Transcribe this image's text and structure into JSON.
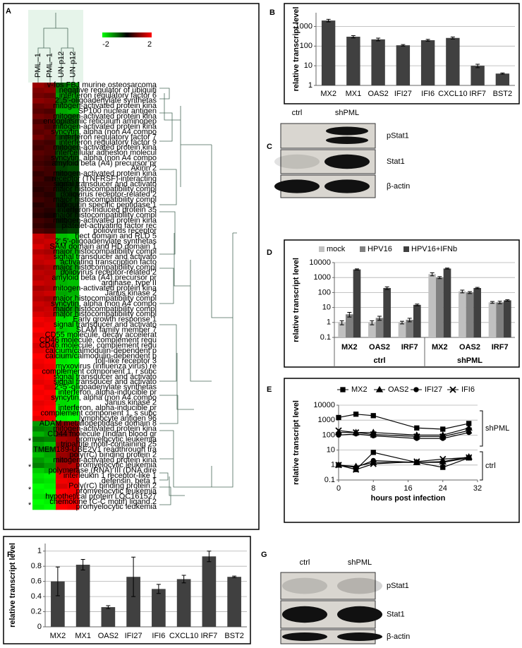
{
  "chart_data": [
    {
      "type": "heatmap",
      "panel": "A",
      "categories": [
        "v-fos FBJ murine osteosarcoma",
        "negative regulator of ubiquiti",
        "interferon regulatory factor 6",
        "2',5'-oligoadenylate synthetas",
        "mitogen-activated protein kina",
        "SP100 nuclear antigen",
        "mitogen-activated protein kina",
        "endoplasmic reticulum aminopep",
        "mitogen-activated protein kina",
        "syncytin, alpha (non A4 compo",
        "interferon regulatory factor 7",
        "interferon regulatory factor 9",
        "mitogen-activated protein kina",
        "intercellular adhesion molecul",
        "syncytin, alpha (non A4 compo",
        "amyloid beta (A4) precursor pr",
        "Akirin 2",
        "mitogen-activated protein kina",
        "receptor (TNFRSF)-interacting",
        "signal transducer and activato",
        "major histocompatibility compl",
        "poliovirus receptor-related 2",
        "major histocompatibility compl",
        "ubiquitin specific peptidase 1",
        "interferon-induced protein 35",
        "major histocompatibility compl",
        "mitogen-activated protein kina",
        "platelet-activating factor rec",
        "poliovirus receptor",
        "hect domain and RLD 5",
        "2',5'-oligoadenylate synthetas",
        "SAM domain and HD domain 1",
        "major histocompatibility compl",
        "signal transducer and activato",
        "activating transcription facto",
        "major histocompatibility compl",
        "poliovirus receptor-related 2",
        "amyloid beta (A4) precursor pr",
        "arginase, type II",
        "mitogen-activated protein kina",
        "Janus kinase 2",
        "major histocompatibility compl",
        "syncytin, alpha (non A4 compo",
        "major histocompatibility compl",
        "major histocompatibility compl",
        "Early growth response 1",
        "signal transducer and activato",
        "SLAM family member 7",
        "CD55 molecule, decay accelerat",
        "CD46 molecule, complement regu",
        "CD46 molecule, complement regu",
        "calcium/calmodulin-dependent p",
        "calcium/calmodulin-dependent p",
        "toll-like receptor 3",
        "myxovirus (influenza virus) re",
        "complement component 1, r subc",
        "signal transducer and activato",
        "signal transducer and activato",
        "2'-5'-oligoadenylate synthetas",
        "interferon, alpha-inducible pr",
        "syncytin, alpha (non A4 compo",
        "Janus kinase 2",
        "interferon, alpha-inducible pr",
        "complement component 1, s subc",
        "lymphocyte antigen 96",
        "ADAM metallopeptidase domain 8",
        "mitogen-activated protein kina",
        "CD44 molecule (Indian blood gr",
        "promyelocytic leukemia",
        "tripartite motif-containing 25",
        "TMEM189-UBE2V1 readthrough tra",
        "poly(rC) binding protein 2",
        "mitogen-activated protein kina",
        "promyelocytic leukemia",
        "polymerase (RNA) III (DNA dire",
        "interleukin 1 receptor-like 1",
        "defensin, beta 1",
        "Poly(rC) binding protein 2",
        "promyelocytic leukemia",
        "hypothetical protein LOC161527",
        "chemokine (C-C motif) ligand 2",
        "promyelocytic leukemia"
      ],
      "series": [
        {
          "name": "PML–1",
          "values": [
            1.2,
            1.0,
            0.9,
            1.1,
            0.8,
            0.7,
            0.9,
            0.6,
            0.8,
            0.7,
            0.9,
            0.6,
            0.5,
            0.7,
            0.6,
            0.5,
            0.6,
            0.4,
            0.5,
            0.4,
            0.3,
            0.4,
            0.5,
            0.3,
            0.4,
            0.3,
            0.5,
            0.4,
            0.6,
            1.6,
            1.5,
            1.7,
            1.4,
            1.6,
            1.5,
            1.3,
            1.5,
            1.4,
            1.6,
            1.3,
            1.5,
            1.4,
            1.6,
            1.5,
            1.7,
            1.9,
            1.8,
            2.0,
            1.8,
            1.9,
            1.7,
            1.8,
            2.0,
            1.9,
            1.8,
            2.0,
            1.9,
            1.8,
            2.0,
            1.9,
            2.0,
            1.8,
            1.9,
            2.0,
            1.8,
            -1.2,
            -1.0,
            -1.4,
            -0.9,
            -1.3,
            -1.1,
            -1.5,
            -1.2,
            -1.0,
            -1.6,
            -1.8,
            -1.7,
            -2.0,
            -1.9,
            -1.8,
            -2.0,
            -1.9
          ]
        },
        {
          "name": "PML–1",
          "values": [
            1.0,
            1.1,
            0.8,
            1.0,
            0.9,
            0.6,
            0.8,
            0.7,
            0.6,
            0.8,
            0.7,
            0.5,
            0.6,
            0.6,
            0.5,
            0.4,
            0.5,
            0.5,
            0.3,
            0.4,
            0.4,
            0.3,
            0.4,
            0.4,
            0.3,
            0.2,
            0.4,
            0.3,
            0.5,
            1.4,
            1.6,
            1.5,
            1.3,
            1.5,
            1.6,
            1.4,
            1.4,
            1.5,
            1.5,
            1.4,
            1.6,
            1.3,
            1.5,
            1.6,
            1.6,
            1.8,
            1.9,
            1.9,
            2.0,
            1.8,
            1.8,
            1.9,
            1.9,
            2.0,
            1.9,
            1.9,
            2.0,
            1.9,
            1.8,
            2.0,
            1.9,
            1.9,
            2.0,
            1.9,
            1.9,
            -1.4,
            -1.1,
            -1.2,
            -1.0,
            -1.5,
            -1.0,
            -1.3,
            -1.4,
            -1.2,
            -1.4,
            -1.9,
            -1.8,
            -1.9,
            -2.0,
            -1.7,
            -1.9,
            -2.0
          ]
        },
        {
          "name": "UN p12",
          "values": [
            -0.8,
            -1.0,
            -1.2,
            -0.9,
            -1.1,
            -1.3,
            -1.0,
            -0.7,
            -0.9,
            -1.1,
            -0.6,
            -0.8,
            -0.5,
            -0.7,
            -0.6,
            -0.4,
            -0.5,
            -0.3,
            -0.4,
            -0.2,
            -0.3,
            -0.4,
            -0.3,
            -0.2,
            -0.3,
            -0.4,
            -0.2,
            -0.3,
            -0.4,
            -1.5,
            -1.4,
            -1.6,
            -1.3,
            -1.5,
            -1.4,
            -1.2,
            -1.3,
            -1.5,
            -1.4,
            -1.6,
            -1.3,
            -1.5,
            -1.4,
            -1.2,
            -1.5,
            -1.7,
            -1.8,
            -1.6,
            -1.9,
            -1.7,
            -1.8,
            -1.9,
            -1.7,
            -1.8,
            -2.0,
            -1.8,
            -1.9,
            -1.7,
            -1.8,
            -1.9,
            -1.8,
            -1.7,
            -1.9,
            -1.8,
            -1.9,
            1.0,
            1.2,
            0.9,
            1.3,
            1.1,
            1.4,
            1.2,
            1.0,
            1.3,
            1.5,
            1.8,
            1.9,
            1.7,
            2.0,
            1.9,
            1.8,
            2.0
          ]
        },
        {
          "name": "UN p12",
          "values": [
            -1.1,
            -0.9,
            -1.3,
            -1.0,
            -1.2,
            -1.4,
            -0.9,
            -0.8,
            -1.0,
            -1.2,
            -0.7,
            -0.9,
            -0.6,
            -0.8,
            -0.7,
            -0.5,
            -0.6,
            -0.4,
            -0.5,
            -0.3,
            -0.4,
            -0.3,
            -0.4,
            -0.3,
            -0.2,
            -0.3,
            -0.3,
            -0.4,
            -0.5,
            -1.6,
            -1.5,
            -1.5,
            -1.4,
            -1.6,
            -1.5,
            -1.3,
            -1.4,
            -1.6,
            -1.5,
            -1.5,
            -1.4,
            -1.6,
            -1.5,
            -1.3,
            -1.6,
            -1.8,
            -1.7,
            -1.7,
            -1.8,
            -1.8,
            -1.9,
            -1.8,
            -1.8,
            -1.9,
            -1.9,
            -1.9,
            -1.8,
            -1.8,
            -1.9,
            -2.0,
            -1.9,
            -1.8,
            -1.8,
            -1.9,
            -2.0,
            1.2,
            1.1,
            1.0,
            1.2,
            1.3,
            1.2,
            1.1,
            1.2,
            1.4,
            1.3,
            1.9,
            1.8,
            1.9,
            1.9,
            2.0,
            1.9,
            1.9
          ]
        }
      ],
      "clim": [
        -2,
        2
      ],
      "cticks": [
        -2,
        2
      ],
      "colormap": [
        "#00ff00",
        "#000000",
        "#ff0000"
      ],
      "annotations": [
        "*",
        "*",
        "*",
        "*"
      ]
    },
    {
      "type": "bar",
      "panel": "B",
      "ylabel": "relative transcript level",
      "categories": [
        "MX2",
        "MX1",
        "OAS2",
        "IFI27",
        "IFI6",
        "CXCL10",
        "IRF7",
        "BST2"
      ],
      "values": [
        2000,
        300,
        220,
        110,
        200,
        260,
        10,
        4
      ],
      "errors": [
        300,
        40,
        35,
        10,
        20,
        30,
        2,
        0.3
      ],
      "color": "#404040",
      "log": true,
      "ylim": [
        1,
        5000
      ],
      "yticks": [
        1,
        10,
        100,
        1000
      ],
      "grid": true
    },
    {
      "type": "bar",
      "panel": "D",
      "ylabel": "relative transcript level",
      "categories": [
        "MX2",
        "OAS2",
        "IRF7",
        "MX2",
        "OAS2",
        "IRF7"
      ],
      "groups": [
        "ctrl",
        "shPML"
      ],
      "series": [
        {
          "name": "mock",
          "color": "#c0c0c0",
          "values": [
            1,
            1,
            1,
            1700,
            120,
            22
          ],
          "errors": [
            0.3,
            0.3,
            0.2,
            400,
            25,
            3
          ]
        },
        {
          "name": "HPV16",
          "color": "#808080",
          "values": [
            3.5,
            2,
            1.5,
            1000,
            100,
            22
          ],
          "errors": [
            1.2,
            0.6,
            0.4,
            150,
            15,
            4
          ]
        },
        {
          "name": "HPV16+IFNb",
          "color": "#404040",
          "values": [
            3500,
            200,
            15,
            4000,
            200,
            30
          ],
          "errors": [
            300,
            40,
            2,
            300,
            20,
            3
          ]
        }
      ],
      "log": true,
      "ylim": [
        0.1,
        10000
      ],
      "yticks": [
        0.1,
        1,
        10,
        100,
        1000,
        10000
      ],
      "grid": true
    },
    {
      "type": "line",
      "panel": "E",
      "ylabel": "relative transcript level",
      "xlabel": "hours post infection",
      "x": [
        0,
        4,
        8,
        18,
        24,
        30
      ],
      "legend": [
        {
          "name": "MX2",
          "marker": "square"
        },
        {
          "name": "OAS2",
          "marker": "triangle"
        },
        {
          "name": "IFI27",
          "marker": "circle"
        },
        {
          "name": "IFI6",
          "marker": "cross"
        }
      ],
      "groups": [
        {
          "label": "shPML",
          "series": [
            {
              "values": [
                1500,
                2500,
                2000,
                300,
                250,
                600
              ]
            },
            {
              "values": [
                150,
                150,
                150,
                100,
                100,
                300
              ]
            },
            {
              "values": [
                100,
                120,
                90,
                60,
                60,
                150
              ]
            },
            {
              "values": [
                200,
                150,
                110,
                80,
                80,
                200
              ]
            }
          ]
        },
        {
          "label": "ctrl",
          "series": [
            {
              "values": [
                1,
                0.5,
                7,
                1.5,
                0.7,
                3
              ]
            },
            {
              "values": [
                1,
                0.8,
                1.5,
                1.5,
                1.7,
                3.5
              ]
            },
            {
              "values": [
                1,
                0.7,
                2,
                1.5,
                1.5,
                3
              ]
            },
            {
              "values": [
                1,
                0.5,
                1.2,
                1.7,
                2.5,
                3.2
              ]
            }
          ]
        }
      ],
      "log": true,
      "xlim": [
        0,
        32
      ],
      "xticks": [
        0,
        8,
        16,
        24,
        32
      ],
      "ylim": [
        0.1,
        10000
      ],
      "yticks": [
        0.1,
        1,
        10,
        100,
        1000,
        10000
      ],
      "grid": true
    },
    {
      "type": "bar",
      "panel": "F",
      "ylabel": "relative transcript level",
      "categories": [
        "MX2",
        "MX1",
        "OAS2",
        "IFI27",
        "IFI6",
        "CXCL10",
        "IRF7",
        "BST2"
      ],
      "values": [
        0.6,
        0.82,
        0.26,
        0.66,
        0.5,
        0.63,
        0.93,
        0.66
      ],
      "errors": [
        0.19,
        0.07,
        0.02,
        0.26,
        0.06,
        0.05,
        0.07,
        0.01
      ],
      "color": "#404040",
      "ylim": [
        0,
        1.1
      ],
      "yticks": [
        0,
        0.2,
        0.4,
        0.6,
        0.8,
        1
      ],
      "grid": true
    }
  ],
  "blots": [
    {
      "panel": "C",
      "lanes": [
        "ctrl",
        "shPML"
      ],
      "rows": [
        "pStat1",
        "Stat1",
        "β-actin"
      ]
    },
    {
      "panel": "G",
      "lanes": [
        "ctrl",
        "shPML"
      ],
      "rows": [
        "pStat1",
        "Stat1",
        "β-actin"
      ]
    }
  ]
}
